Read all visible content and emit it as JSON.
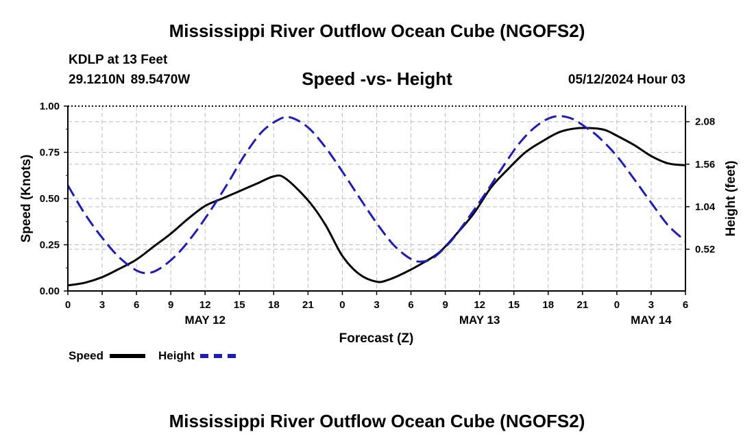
{
  "header": {
    "title": "Mississippi River Outflow Ocean Cube (NGOFS2)",
    "station": "KDLP at 13 Feet",
    "coords": "29.1210N  89.5470W",
    "subtitle": "Speed -vs- Height",
    "datetime": "05/12/2024 Hour 03"
  },
  "legend": {
    "speed_label": "Speed",
    "height_label": "Height"
  },
  "footer": {
    "title": "Mississippi River Outflow Ocean Cube (NGOFS2)"
  },
  "colors": {
    "speed": "#000000",
    "height": "#1a1acd",
    "grid": "#bbbbbb"
  },
  "chart_data": {
    "type": "line",
    "title": "Speed -vs- Height",
    "xlabel": "Forecast (Z)",
    "ylabel": "Speed (Knots)",
    "y2label": "Height (feet)",
    "x_range_hours": [
      0,
      54
    ],
    "x_ticks": [
      0,
      3,
      6,
      9,
      12,
      15,
      18,
      21,
      24,
      27,
      30,
      33,
      36,
      39,
      42,
      45,
      48,
      51,
      54
    ],
    "x_tick_labels": [
      "0",
      "3",
      "6",
      "9",
      "12",
      "15",
      "18",
      "21",
      "0",
      "3",
      "6",
      "9",
      "12",
      "15",
      "18",
      "21",
      "0",
      "3",
      "6"
    ],
    "date_labels": [
      {
        "hour": 12,
        "label": "MAY 12"
      },
      {
        "hour": 36,
        "label": "MAY 13"
      },
      {
        "hour": 51,
        "label": "MAY 14"
      }
    ],
    "ylim": [
      0,
      1
    ],
    "y_ticks": [
      0,
      0.25,
      0.5,
      0.75,
      1.0
    ],
    "y_tick_labels": [
      "0.00",
      "0.25",
      "0.50",
      "0.75",
      "1.00"
    ],
    "y2lim": [
      0.01,
      2.27
    ],
    "y2_ticks": [
      0.52,
      1.04,
      1.56,
      2.08
    ],
    "y2_tick_labels": [
      "0.52",
      "1.04",
      "1.56",
      "2.08"
    ],
    "series": [
      {
        "name": "Speed",
        "axis": "left",
        "x": [
          0,
          1.5,
          3,
          4.5,
          6,
          7.5,
          9,
          10.5,
          12,
          13.5,
          15,
          16.5,
          18,
          19,
          21,
          22.5,
          24,
          25.5,
          27,
          28,
          29.5,
          31,
          32.5,
          34,
          35.5,
          37,
          38.5,
          40,
          41.5,
          43,
          44.5,
          46,
          47,
          48,
          49.5,
          51,
          52.5,
          54
        ],
        "values": [
          0.03,
          0.045,
          0.075,
          0.12,
          0.17,
          0.24,
          0.31,
          0.39,
          0.46,
          0.5,
          0.54,
          0.58,
          0.62,
          0.61,
          0.49,
          0.36,
          0.19,
          0.09,
          0.05,
          0.06,
          0.1,
          0.15,
          0.21,
          0.31,
          0.42,
          0.56,
          0.66,
          0.75,
          0.81,
          0.86,
          0.88,
          0.88,
          0.87,
          0.84,
          0.79,
          0.73,
          0.69,
          0.68
        ]
      },
      {
        "name": "Height",
        "axis": "right",
        "x": [
          0,
          1.5,
          3,
          4.5,
          6,
          7,
          8,
          9.5,
          11,
          12.5,
          14,
          15.5,
          17,
          18.5,
          19.5,
          21,
          22.5,
          24,
          25.5,
          27,
          28.5,
          30,
          31,
          32,
          33.5,
          35,
          36.5,
          38,
          39.5,
          41,
          42.5,
          44,
          45.5,
          46.5,
          48,
          49.5,
          51,
          52.5,
          54
        ],
        "values": [
          1.3,
          0.95,
          0.66,
          0.42,
          0.26,
          0.23,
          0.28,
          0.45,
          0.7,
          1.0,
          1.33,
          1.68,
          1.96,
          2.11,
          2.13,
          2.01,
          1.77,
          1.47,
          1.15,
          0.84,
          0.57,
          0.4,
          0.37,
          0.42,
          0.62,
          0.9,
          1.2,
          1.52,
          1.82,
          2.03,
          2.14,
          2.12,
          1.99,
          1.88,
          1.66,
          1.38,
          1.09,
          0.81,
          0.62
        ]
      }
    ]
  }
}
